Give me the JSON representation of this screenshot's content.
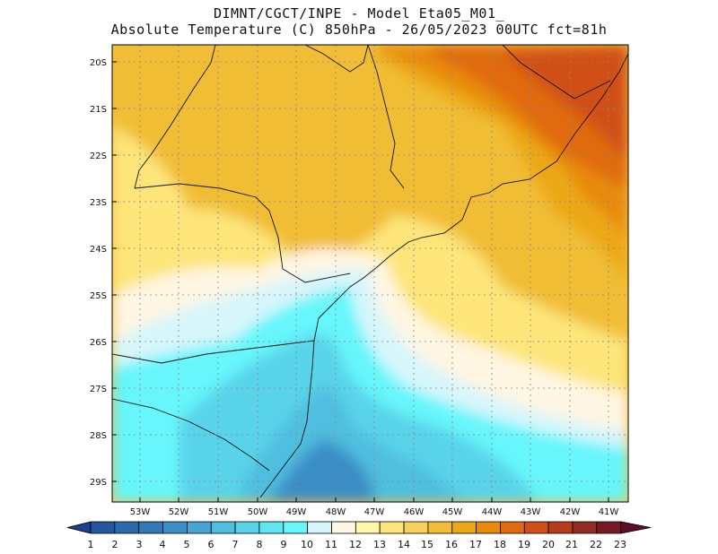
{
  "header": {
    "line1": "DIMNT/CGCT/INPE -  Model Eta05_M01_",
    "line2": "Absolute Temperature (C) 850hPa -  26/05/2023 00UTC fct=81h"
  },
  "map": {
    "lat_labels": [
      "20S",
      "21S",
      "22S",
      "23S",
      "24S",
      "25S",
      "26S",
      "27S",
      "28S",
      "29S"
    ],
    "lon_labels": [
      "53W",
      "52W",
      "51W",
      "50W",
      "49W",
      "48W",
      "47W",
      "46W",
      "45W",
      "44W",
      "43W",
      "42W",
      "41W"
    ]
  },
  "colorbar": {
    "labels": [
      "1",
      "2",
      "3",
      "4",
      "5",
      "6",
      "7",
      "8",
      "9",
      "10",
      "11",
      "12",
      "13",
      "14",
      "15",
      "16",
      "17",
      "18",
      "19",
      "20",
      "21",
      "22",
      "23"
    ],
    "colors": [
      "#1c3f8f",
      "#23569e",
      "#2a6aad",
      "#3179b8",
      "#3b8ec6",
      "#45a6d3",
      "#4fbedf",
      "#58d3ea",
      "#5fe6f3",
      "#66f6fb",
      "#d7f6fb",
      "#fff6e3",
      "#fff7a8",
      "#fde57a",
      "#f7d15a",
      "#f1bd35",
      "#eca816",
      "#e88a0c",
      "#e06a10",
      "#d04f16",
      "#b53d1e",
      "#952a23",
      "#761a24",
      "#5a0f22"
    ]
  }
}
